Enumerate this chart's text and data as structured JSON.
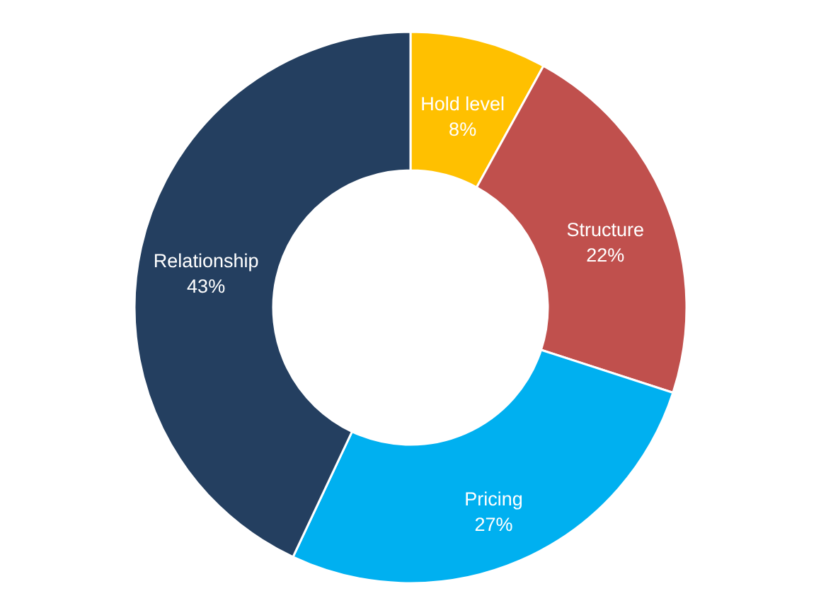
{
  "chart_data": {
    "type": "donut",
    "categories": [
      "Hold level",
      "Structure",
      "Pricing",
      "Relationship"
    ],
    "values": [
      8,
      22,
      27,
      43
    ],
    "colors": [
      "#ffc000",
      "#c0504d",
      "#00b0f0",
      "#243f60"
    ],
    "value_labels": [
      "8%",
      "22%",
      "27%",
      "43%"
    ]
  }
}
